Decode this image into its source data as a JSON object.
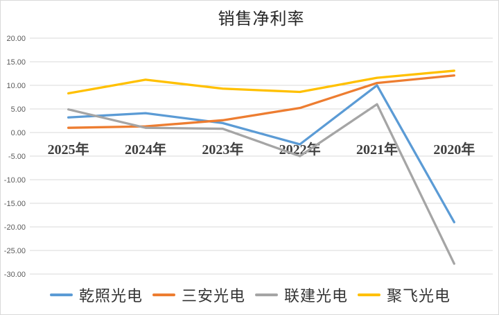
{
  "chart_data": {
    "type": "line",
    "title": "销售净利率",
    "categories": [
      "2025年",
      "2024年",
      "2023年",
      "2022年",
      "2021年",
      "2020年"
    ],
    "series": [
      {
        "name": "乾照光电",
        "color": "#5B9BD5",
        "values": [
          3.2,
          4.1,
          2.0,
          -2.5,
          10.0,
          -19.0
        ]
      },
      {
        "name": "三安光电",
        "color": "#ED7D31",
        "values": [
          1.0,
          1.3,
          2.6,
          5.2,
          10.5,
          12.1
        ]
      },
      {
        "name": "联建光电",
        "color": "#A5A5A5",
        "values": [
          4.9,
          1.0,
          0.8,
          -5.0,
          6.0,
          -27.8
        ]
      },
      {
        "name": "聚飞光电",
        "color": "#FFC000",
        "values": [
          8.3,
          11.2,
          9.3,
          8.6,
          11.6,
          13.1
        ]
      }
    ],
    "y_axis": {
      "min": -30,
      "max": 20,
      "step": 5,
      "tick_labels": [
        "20.00",
        "15.00",
        "10.00",
        "5.00",
        "0.00",
        "-5.00",
        "-10.00",
        "-15.00",
        "-20.00",
        "-25.00",
        "-30.00"
      ]
    },
    "grid": true,
    "legend_position": "bottom"
  },
  "colors": {
    "gridline": "#D9D9D9",
    "frame_border": "#D9D9D9",
    "axis_tick_text": "#595959",
    "category_text": "#3F3F3F",
    "title_text": "#262626",
    "background": "#FFFFFF"
  }
}
